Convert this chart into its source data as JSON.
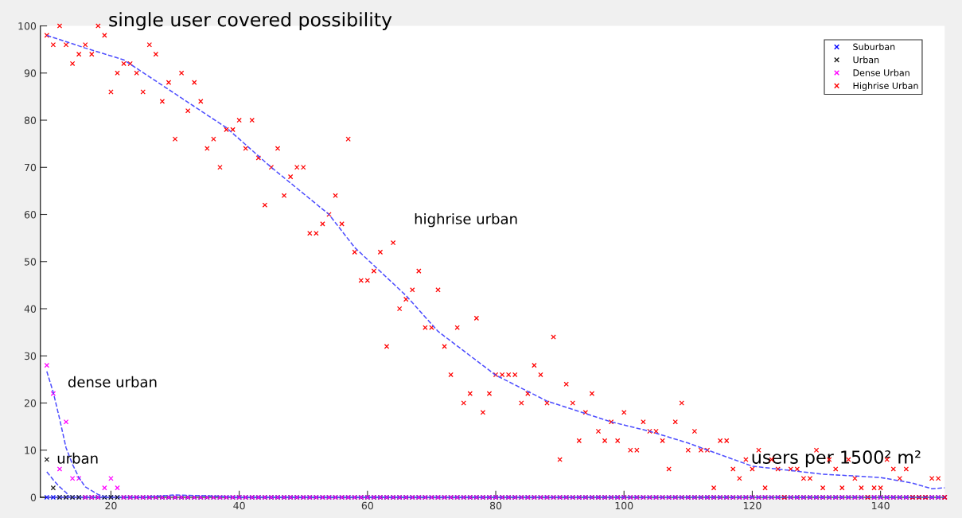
{
  "chart_data": {
    "type": "scatter",
    "title": "single user covered possibility",
    "xlabel": "users per 1500² m²",
    "x": [
      10,
      11,
      12,
      13,
      14,
      15,
      16,
      17,
      18,
      19,
      20,
      21,
      22,
      23,
      24,
      25,
      26,
      27,
      28,
      29,
      30,
      31,
      32,
      33,
      34,
      35,
      36,
      37,
      38,
      39,
      40,
      41,
      42,
      43,
      44,
      45,
      46,
      47,
      48,
      49,
      50,
      51,
      52,
      53,
      54,
      55,
      56,
      57,
      58,
      59,
      60,
      61,
      62,
      63,
      64,
      65,
      66,
      67,
      68,
      69,
      70,
      71,
      72,
      73,
      74,
      75,
      76,
      77,
      78,
      79,
      80,
      81,
      82,
      83,
      84,
      85,
      86,
      87,
      88,
      89,
      90,
      91,
      92,
      93,
      94,
      95,
      96,
      97,
      98,
      99,
      100,
      101,
      102,
      103,
      104,
      105,
      106,
      107,
      108,
      109,
      110,
      111,
      112,
      113,
      114,
      115,
      116,
      117,
      118,
      119,
      120,
      121,
      122,
      123,
      124,
      125,
      126,
      127,
      128,
      129,
      130,
      131,
      132,
      133,
      134,
      135,
      136,
      137,
      138,
      139,
      140,
      141,
      142,
      143,
      144,
      145,
      146,
      147,
      148,
      149,
      150
    ],
    "xlim": [
      9,
      150
    ],
    "ylim": [
      0,
      100
    ],
    "xticks": [
      20,
      40,
      60,
      80,
      100,
      120,
      140
    ],
    "yticks": [
      0,
      10,
      20,
      30,
      40,
      50,
      60,
      70,
      80,
      90,
      100
    ],
    "grid": false,
    "legend": "top right",
    "marker": "cross",
    "series": [
      {
        "name": "Suburban",
        "color": "#0000ff",
        "values": [
          0,
          0,
          0,
          0,
          0,
          0,
          0,
          0,
          0,
          0,
          0,
          0,
          0,
          0,
          0,
          0,
          0,
          0,
          0,
          0,
          0,
          0,
          0,
          0,
          0,
          0,
          0,
          0,
          0,
          0,
          0,
          0,
          0,
          0,
          0,
          0,
          0,
          0,
          0,
          0,
          0,
          0,
          0,
          0,
          0,
          0,
          0,
          0,
          0,
          0,
          0,
          0,
          0,
          0,
          0,
          0,
          0,
          0,
          0,
          0,
          0,
          0,
          0,
          0,
          0,
          0,
          0,
          0,
          0,
          0,
          0,
          0,
          0,
          0,
          0,
          0,
          0,
          0,
          0,
          0,
          0,
          0,
          0,
          0,
          0,
          0,
          0,
          0,
          0,
          0,
          0,
          0,
          0,
          0,
          0,
          0,
          0,
          0,
          0,
          0,
          0,
          0,
          0,
          0,
          0,
          0,
          0,
          0,
          0,
          0,
          0,
          0,
          0,
          0,
          0,
          0,
          0,
          0,
          0,
          0,
          0,
          0,
          0,
          0,
          0,
          0,
          0,
          0,
          0,
          0,
          0,
          0,
          0,
          0,
          0,
          0,
          0,
          0,
          0,
          0,
          0
        ]
      },
      {
        "name": "Urban",
        "color": "#222222",
        "values": [
          8,
          2,
          0,
          0,
          0,
          0,
          0,
          0,
          0,
          0,
          0,
          0,
          0,
          0,
          0,
          0,
          0,
          0,
          0,
          0,
          0,
          0,
          0,
          0,
          0,
          0,
          0,
          0,
          0,
          0,
          0,
          0,
          0,
          0,
          0,
          0,
          0,
          0,
          0,
          0,
          0,
          0,
          0,
          0,
          0,
          0,
          0,
          0,
          0,
          0,
          0,
          0,
          0,
          0,
          0,
          0,
          0,
          0,
          0,
          0,
          0,
          0,
          0,
          0,
          0,
          0,
          0,
          0,
          0,
          0,
          0,
          0,
          0,
          0,
          0,
          0,
          0,
          0,
          0,
          0,
          0,
          0,
          0,
          0,
          0,
          0,
          0,
          0,
          0,
          0,
          0,
          0,
          0,
          0,
          0,
          0,
          0,
          0,
          0,
          0,
          0,
          0,
          0,
          0,
          0,
          0,
          0,
          0,
          0,
          0,
          0,
          0,
          0,
          0,
          0,
          0,
          0,
          0,
          0,
          0,
          0,
          0,
          0,
          0,
          0,
          0,
          0,
          0,
          0,
          0,
          0,
          0,
          0,
          0,
          0,
          0,
          0,
          0,
          0,
          0,
          0
        ]
      },
      {
        "name": "Dense Urban",
        "color": "#ff00ff",
        "values": [
          28,
          22,
          6,
          16,
          4,
          4,
          0,
          0,
          0,
          2,
          4,
          2,
          0,
          0,
          0,
          0,
          0,
          0,
          0,
          0,
          0,
          0,
          0,
          0,
          0,
          0,
          0,
          0,
          0,
          0,
          0,
          0,
          0,
          0,
          0,
          0,
          0,
          0,
          0,
          0,
          0,
          0,
          0,
          0,
          0,
          0,
          0,
          0,
          0,
          0,
          0,
          0,
          0,
          0,
          0,
          0,
          0,
          0,
          0,
          0,
          0,
          0,
          0,
          0,
          0,
          0,
          0,
          0,
          0,
          0,
          0,
          0,
          0,
          0,
          0,
          0,
          0,
          0,
          0,
          0,
          0,
          0,
          0,
          0,
          0,
          0,
          0,
          0,
          0,
          0,
          0,
          0,
          0,
          0,
          0,
          0,
          0,
          0,
          0,
          0,
          0,
          0,
          0,
          0,
          0,
          0,
          0,
          0,
          0,
          0,
          0,
          0,
          0,
          0,
          0,
          0,
          0,
          0,
          0,
          0,
          0,
          0,
          0,
          0,
          0,
          0,
          0,
          0,
          0,
          0,
          0,
          0,
          0,
          0,
          0,
          0,
          0,
          0,
          0,
          0,
          0
        ]
      },
      {
        "name": "Highrise Urban",
        "color": "#ff0000",
        "values": [
          98,
          96,
          100,
          96,
          92,
          94,
          96,
          94,
          100,
          98,
          86,
          90,
          92,
          92,
          90,
          86,
          96,
          94,
          84,
          88,
          76,
          90,
          82,
          88,
          84,
          74,
          76,
          70,
          78,
          78,
          80,
          74,
          80,
          72,
          62,
          70,
          74,
          64,
          68,
          70,
          70,
          56,
          56,
          58,
          60,
          64,
          58,
          76,
          52,
          46,
          46,
          48,
          52,
          32,
          54,
          40,
          42,
          44,
          48,
          36,
          36,
          44,
          32,
          26,
          36,
          20,
          22,
          38,
          18,
          22,
          26,
          26,
          26,
          26,
          20,
          22,
          28,
          26,
          20,
          34,
          8,
          24,
          20,
          12,
          18,
          22,
          14,
          12,
          16,
          12,
          18,
          10,
          10,
          16,
          14,
          14,
          12,
          6,
          16,
          20,
          10,
          14,
          10,
          10,
          2,
          12,
          12,
          6,
          4,
          8,
          6,
          10,
          2,
          8,
          6,
          0,
          6,
          6,
          4,
          4,
          10,
          2,
          8,
          6,
          2,
          8,
          4,
          2,
          0,
          2,
          2,
          8,
          6,
          4,
          6,
          0,
          0,
          0,
          4,
          4,
          0
        ]
      },
      {
        "type": "line",
        "color": "#4d4dff",
        "line_style": "dashed",
        "marker": "none",
        "x": [
          10,
          25,
          30,
          35,
          40,
          60,
          80,
          100,
          120,
          150
        ],
        "values": [
          0,
          0,
          0.5,
          0.3,
          0,
          0,
          0,
          0,
          0,
          0
        ]
      },
      {
        "type": "line",
        "color": "#4d4dff",
        "line_style": "dashed",
        "marker": "none",
        "x": [
          10,
          11,
          12,
          13,
          13.5
        ],
        "values": [
          5.4,
          3.7,
          2.2,
          1,
          0.2
        ]
      },
      {
        "type": "line",
        "color": "#4d4dff",
        "line_style": "dashed",
        "marker": "none",
        "x": [
          10,
          11,
          12,
          13,
          14,
          15,
          16,
          18,
          19.3
        ],
        "values": [
          26.7,
          22.3,
          16.6,
          10.5,
          7,
          4.2,
          2.2,
          0.6,
          0
        ]
      },
      {
        "type": "line",
        "color": "#4d4dff",
        "line_style": "dashed",
        "marker": "none",
        "x": [
          10,
          16,
          22,
          28,
          38,
          45,
          54,
          58,
          66,
          71,
          80,
          88,
          98,
          104,
          110,
          120,
          131,
          140,
          145,
          148,
          150
        ],
        "values": [
          98,
          95.3,
          92.8,
          87.4,
          78.4,
          70,
          60,
          53,
          42.8,
          35.2,
          25.9,
          20.4,
          16,
          14,
          11.5,
          6.6,
          4.9,
          4.2,
          3,
          1.8,
          2
        ]
      }
    ],
    "annotations": [
      "highrise urban",
      "dense urban",
      "urban"
    ]
  }
}
